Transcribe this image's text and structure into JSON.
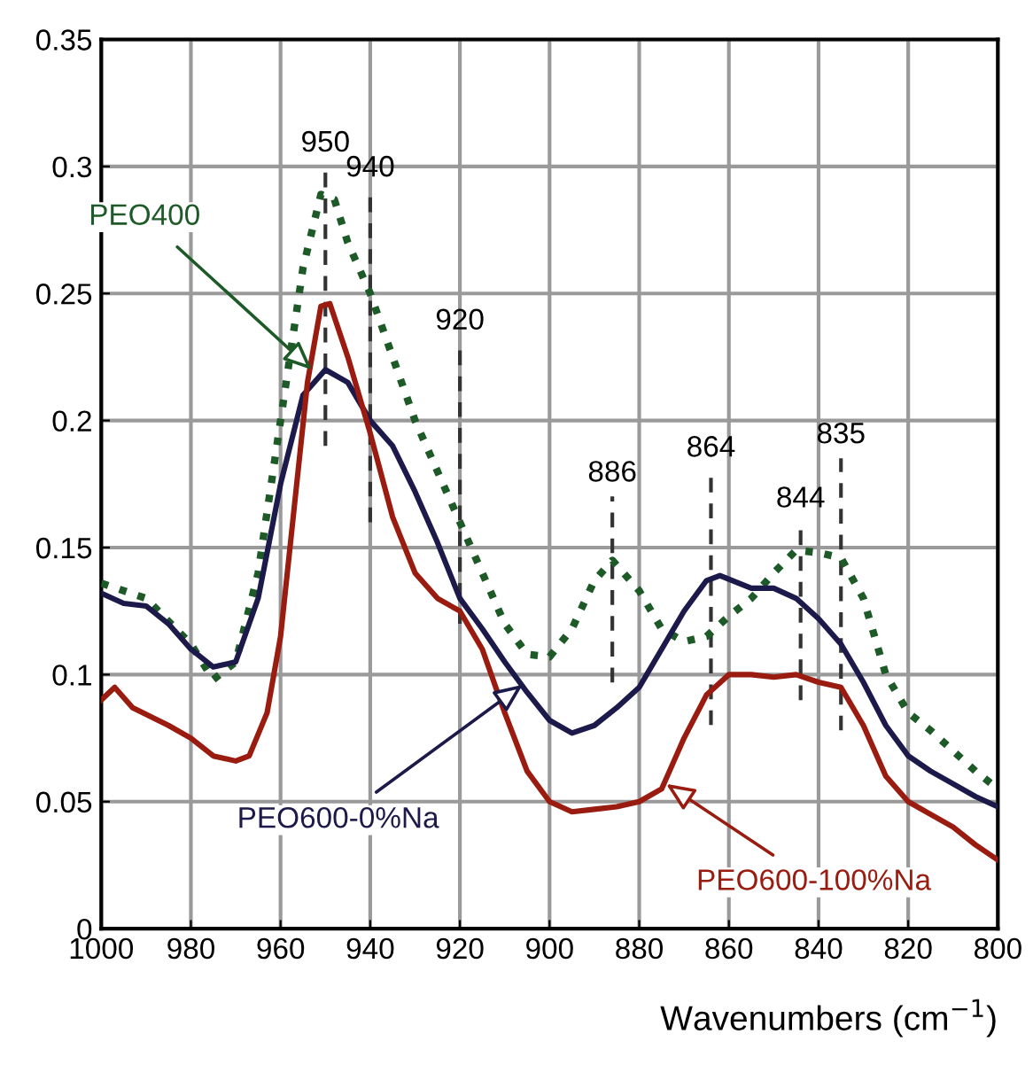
{
  "chart_data": {
    "type": "line",
    "xlabel": "Wavenumbers (cm$^{−1}$)",
    "xlim": [
      1000,
      800
    ],
    "xticks": [
      1000,
      980,
      960,
      940,
      920,
      900,
      880,
      860,
      840,
      820,
      800
    ],
    "ylim": [
      0,
      0.35
    ],
    "yticks": [
      0,
      0.05,
      0.1,
      0.15,
      0.2,
      0.25,
      0.3,
      0.35
    ],
    "grid": true,
    "legend": false,
    "series": [
      {
        "color": "#1e5a28",
        "line_style": "dotted",
        "x": [
          1000,
          990,
          980,
          975,
          970,
          965,
          960,
          955,
          951,
          948,
          945,
          940,
          935,
          930,
          925,
          920,
          915,
          910,
          905,
          900,
          895,
          890,
          886,
          880,
          875,
          870,
          865,
          860,
          855,
          850,
          845,
          840,
          835,
          830,
          825,
          820,
          815,
          810,
          805,
          800
        ],
        "values": [
          0.136,
          0.13,
          0.112,
          0.098,
          0.105,
          0.14,
          0.2,
          0.26,
          0.289,
          0.287,
          0.27,
          0.25,
          0.225,
          0.2,
          0.18,
          0.16,
          0.14,
          0.12,
          0.108,
          0.107,
          0.118,
          0.137,
          0.145,
          0.133,
          0.118,
          0.113,
          0.115,
          0.123,
          0.13,
          0.14,
          0.149,
          0.148,
          0.146,
          0.13,
          0.1,
          0.085,
          0.078,
          0.07,
          0.062,
          0.055
        ]
      },
      {
        "color": "#1c1a4a",
        "line_style": "solid",
        "x": [
          1000,
          995,
          990,
          985,
          980,
          975,
          970,
          965,
          960,
          955,
          950,
          945,
          940,
          935,
          930,
          925,
          920,
          915,
          910,
          905,
          900,
          895,
          890,
          885,
          880,
          875,
          870,
          865,
          862,
          855,
          850,
          845,
          840,
          835,
          830,
          825,
          820,
          815,
          810,
          805,
          800
        ],
        "values": [
          0.132,
          0.128,
          0.127,
          0.12,
          0.11,
          0.103,
          0.105,
          0.13,
          0.175,
          0.21,
          0.22,
          0.215,
          0.2,
          0.19,
          0.172,
          0.152,
          0.13,
          0.118,
          0.105,
          0.093,
          0.082,
          0.077,
          0.08,
          0.087,
          0.095,
          0.11,
          0.125,
          0.137,
          0.139,
          0.134,
          0.134,
          0.13,
          0.122,
          0.112,
          0.097,
          0.08,
          0.068,
          0.062,
          0.057,
          0.052,
          0.048
        ]
      },
      {
        "color": "#9a1c10",
        "line_style": "solid",
        "x": [
          1000,
          997,
          993,
          985,
          980,
          975,
          970,
          967,
          963,
          960,
          957,
          954,
          951,
          949,
          945,
          940,
          935,
          930,
          925,
          920,
          915,
          910,
          905,
          900,
          895,
          890,
          885,
          880,
          875,
          870,
          865,
          860,
          855,
          850,
          845,
          840,
          835,
          830,
          825,
          820,
          815,
          810,
          805,
          800
        ],
        "values": [
          0.09,
          0.095,
          0.087,
          0.08,
          0.075,
          0.068,
          0.066,
          0.068,
          0.085,
          0.115,
          0.165,
          0.215,
          0.245,
          0.246,
          0.225,
          0.195,
          0.162,
          0.14,
          0.13,
          0.125,
          0.11,
          0.085,
          0.062,
          0.05,
          0.046,
          0.047,
          0.048,
          0.05,
          0.055,
          0.075,
          0.092,
          0.1,
          0.1,
          0.099,
          0.1,
          0.097,
          0.095,
          0.08,
          0.06,
          0.05,
          0.045,
          0.04,
          0.033,
          0.027
        ]
      }
    ],
    "annotations": [
      {
        "text": "PEO400",
        "x": 953,
        "y": 0.22
      },
      {
        "text": "PEO600-0%Na",
        "x": 906,
        "y": 0.096
      },
      {
        "text": "PEO600-100%Na",
        "x": 874,
        "y": 0.057
      }
    ],
    "ref_lines": [
      {
        "axis": "x",
        "value": 950,
        "label": "950",
        "line_style": "dashed"
      },
      {
        "axis": "x",
        "value": 940,
        "label": "940",
        "line_style": "dashed"
      },
      {
        "axis": "x",
        "value": 920,
        "label": "920",
        "line_style": "dashed"
      },
      {
        "axis": "x",
        "value": 886,
        "label": "886",
        "line_style": "dashed"
      },
      {
        "axis": "x",
        "value": 864,
        "label": "864",
        "line_style": "dashed"
      },
      {
        "axis": "x",
        "value": 844,
        "label": "844",
        "line_style": "dashed"
      },
      {
        "axis": "x",
        "value": 835,
        "label": "835",
        "line_style": "dashed"
      }
    ]
  }
}
